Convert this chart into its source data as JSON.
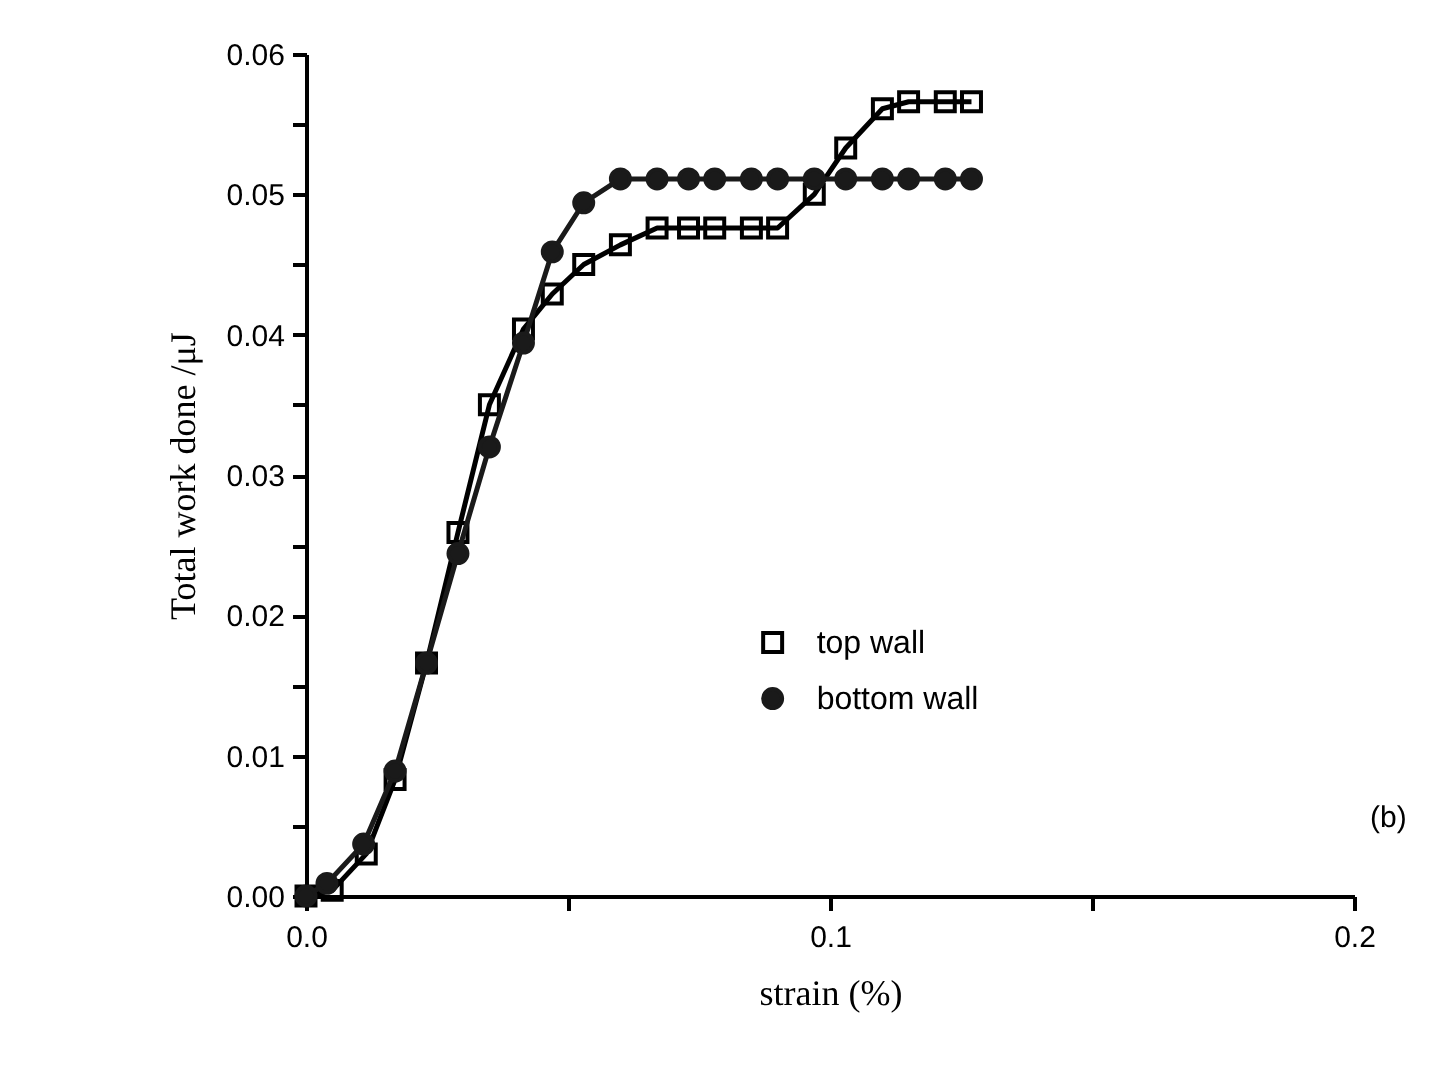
{
  "chart_data": {
    "type": "line",
    "xlabel": "strain (%)",
    "ylabel": "Total work done /μJ",
    "annotations": [
      "(b)"
    ],
    "xlim": [
      0,
      0.2
    ],
    "ylim": [
      0,
      0.06
    ],
    "xticks": [
      {
        "value": 0,
        "label": "0.0"
      },
      {
        "value": 0.05,
        "label": null
      },
      0.1,
      {
        "value": 0.15,
        "label": null
      },
      0.2
    ],
    "yticks": [
      {
        "value": 0,
        "label": "0.00"
      },
      {
        "value": 0.005,
        "label": null
      },
      0.01,
      {
        "value": 0.015,
        "label": null
      },
      0.02,
      {
        "value": 0.025,
        "label": null
      },
      0.03,
      {
        "value": 0.035,
        "label": null
      },
      0.04,
      {
        "value": 0.045,
        "label": null
      },
      0.05,
      {
        "value": 0.055,
        "label": null
      },
      0.06
    ],
    "grid": false,
    "legend": "right",
    "line_style": "solid",
    "series": [
      {
        "name": "top wall",
        "color": "#000000",
        "marker": "square",
        "x": [
          0,
          0.005,
          0.0115,
          0.017,
          0.023,
          0.029,
          0.035,
          0.0415,
          0.047,
          0.053,
          0.06,
          0.067,
          0.073,
          0.078,
          0.085,
          0.09,
          0.097,
          0.103,
          0.11,
          0.115,
          0.122,
          0.127
        ],
        "values": [
          0,
          0.0004,
          0.003,
          0.0083,
          0.0166,
          0.0259,
          0.035,
          0.0404,
          0.0429,
          0.045,
          0.0464,
          0.0476,
          0.0476,
          0.0476,
          0.0476,
          0.0476,
          0.05,
          0.0533,
          0.0561,
          0.0566,
          0.0566,
          0.0566
        ]
      },
      {
        "name": "bottom wall",
        "color": "#1a1a1a",
        "marker": "circle",
        "x": [
          0,
          0.004,
          0.011,
          0.017,
          0.023,
          0.029,
          0.035,
          0.0415,
          0.047,
          0.053,
          0.06,
          0.067,
          0.073,
          0.078,
          0.085,
          0.09,
          0.097,
          0.103,
          0.11,
          0.115,
          0.122,
          0.127
        ],
        "values": [
          0,
          0.0009,
          0.0037,
          0.0089,
          0.0166,
          0.0244,
          0.032,
          0.0394,
          0.0459,
          0.0494,
          0.0511,
          0.0511,
          0.0511,
          0.0511,
          0.0511,
          0.0511,
          0.0511,
          0.0511,
          0.0511,
          0.0511,
          0.0511,
          0.0511
        ]
      }
    ]
  }
}
